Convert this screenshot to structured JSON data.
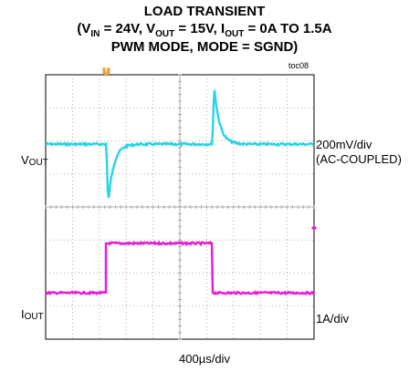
{
  "title": {
    "line1": "LOAD TRANSIENT",
    "line2_parts": [
      "(V",
      "IN",
      " = 24V, V",
      "OUT",
      " = 15V, I",
      "OUT",
      " = 0A TO 1.5A"
    ],
    "line3": "PWM MODE, MODE = SGND)"
  },
  "figure_id": "toc08",
  "chart_data": {
    "type": "line",
    "title": "LOAD TRANSIENT",
    "grid": true,
    "divisions": {
      "x": 10,
      "y": 8
    },
    "x_scale": "400µs/div",
    "trigger_marker": "T",
    "series": [
      {
        "label_parts": [
          "V",
          "OUT"
        ],
        "scale_lines": [
          "200mV/div",
          "(AC-COUPLED)"
        ],
        "color": "#27d3e6",
        "baseline_div": 2.1,
        "undershoot_at_div": 2.26,
        "undershoot_depth_div": 1.8,
        "overshoot_at_div": 6.21,
        "overshoot_height_div": 1.75
      },
      {
        "label_parts": [
          "I",
          "OUT"
        ],
        "scale_lines": [
          "1A/div"
        ],
        "color": "#e81ad5",
        "low_div": 6.6,
        "high_div": 5.1,
        "rise_at_div": 2.26,
        "fall_at_div": 6.21
      }
    ],
    "colors": {
      "grid": "#9a9a9a",
      "frame": "#000000",
      "trigger": "#e8a33c"
    }
  }
}
